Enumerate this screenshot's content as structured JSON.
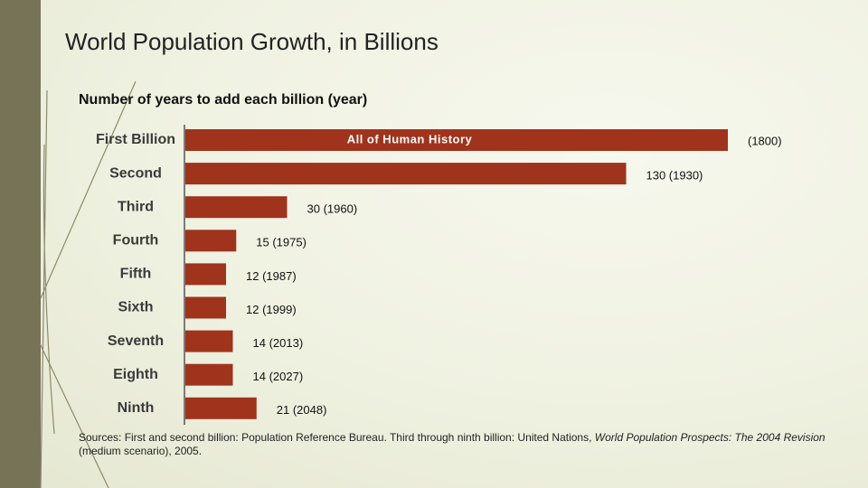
{
  "chart_data": {
    "type": "hbar",
    "title": "World Population Growth, in Billions",
    "subtitle": "Number of years to add each billion (year)",
    "categories": [
      "First Billion",
      "Second",
      "Third",
      "Fourth",
      "Fifth",
      "Sixth",
      "Seventh",
      "Eighth",
      "Ninth"
    ],
    "values": [
      160,
      130,
      30,
      15,
      12,
      12,
      14,
      14,
      21
    ],
    "bar_labels": [
      "(1800)",
      "130 (1930)",
      "30 (1960)",
      "15 (1975)",
      "12 (1987)",
      "12 (1999)",
      "14 (2013)",
      "14 (2027)",
      "21 (2048)"
    ],
    "inner_label": "All of Human History",
    "color": "#a0331c",
    "xlim": [
      0,
      160
    ],
    "source": "Sources: First and second billion: Population Reference Bureau. Third through ninth billion: United Nations,",
    "source_title": "World Population Prospects: The 2004 Revision",
    "source_tail": "(medium scenario), 2005."
  }
}
